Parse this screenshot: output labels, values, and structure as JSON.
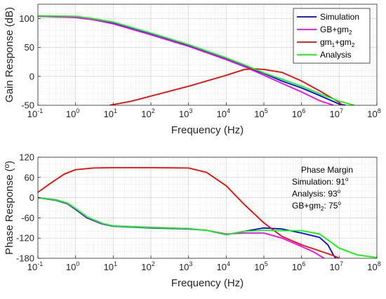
{
  "colors": {
    "simulation": "#0000ff",
    "gb_gm2": "#ff00ff",
    "gm1_gm2": "#ff0000",
    "analysis": "#00ff00"
  },
  "chart_data": [
    {
      "type": "line",
      "xscale": "log",
      "xlim": [
        0.1,
        100000000
      ],
      "ylim": [
        -50,
        125
      ],
      "xlabel": "Frequency (Hz)",
      "ylabel": "Gain Response (dB)",
      "xtick_labels": [
        {
          "base": "10",
          "exp": "-1"
        },
        {
          "base": "10",
          "exp": "0"
        },
        {
          "base": "10",
          "exp": "1"
        },
        {
          "base": "10",
          "exp": "2"
        },
        {
          "base": "10",
          "exp": "3"
        },
        {
          "base": "10",
          "exp": "4"
        },
        {
          "base": "10",
          "exp": "5"
        },
        {
          "base": "10",
          "exp": "6"
        },
        {
          "base": "10",
          "exp": "7"
        },
        {
          "base": "10",
          "exp": "8"
        }
      ],
      "ytick_labels": [
        "100",
        "50",
        "0",
        "-50"
      ],
      "grid": true,
      "legend_position": "top-right",
      "series": [
        {
          "key": "simulation",
          "name": "Simulation",
          "color": "#0000ff",
          "x": [
            0.1,
            1,
            3,
            10,
            100,
            1000,
            10000,
            30000,
            100000,
            300000,
            1000000,
            3000000,
            10000000,
            15000000
          ],
          "y": [
            104,
            103,
            99,
            92,
            73,
            53,
            30,
            18,
            5,
            -8,
            -20,
            -33,
            -48,
            -50
          ]
        },
        {
          "key": "gb_gm2",
          "name": "GB+gm",
          "sub": "2",
          "color": "#ff00ff",
          "x": [
            0.1,
            1,
            3,
            10,
            100,
            1000,
            10000,
            30000,
            100000,
            300000,
            1000000,
            3000000,
            7000000
          ],
          "y": [
            104,
            102,
            98,
            91,
            72,
            52,
            29,
            17,
            2,
            -12,
            -27,
            -42,
            -50
          ]
        },
        {
          "key": "gm1_gm2",
          "name": "gm",
          "sub": "1",
          "name2": "+gm",
          "sub2": "2",
          "color": "#ff0000",
          "x": [
            8,
            30,
            100,
            1000,
            10000,
            30000,
            60000,
            100000,
            300000,
            1000000,
            3000000,
            10000000,
            12000000
          ],
          "y": [
            -50,
            -43,
            -34,
            -17,
            2,
            12,
            13,
            12,
            7,
            -8,
            -25,
            -45,
            -50
          ]
        },
        {
          "key": "analysis",
          "name": "Analysis",
          "color": "#00ff00",
          "x": [
            0.1,
            1,
            3,
            10,
            100,
            1000,
            10000,
            30000,
            100000,
            300000,
            1000000,
            3000000,
            10000000,
            25000000
          ],
          "y": [
            105,
            104,
            100,
            94,
            75,
            55,
            32,
            20,
            6,
            -5,
            -17,
            -30,
            -43,
            -50
          ]
        }
      ]
    },
    {
      "type": "line",
      "xscale": "log",
      "xlim": [
        0.1,
        100000000
      ],
      "ylim": [
        -180,
        120
      ],
      "xlabel": "Frequency (Hz)",
      "ylabel": "Phase Response (º)",
      "xtick_labels": [
        {
          "base": "10",
          "exp": "-1"
        },
        {
          "base": "10",
          "exp": "0"
        },
        {
          "base": "10",
          "exp": "1"
        },
        {
          "base": "10",
          "exp": "2"
        },
        {
          "base": "10",
          "exp": "3"
        },
        {
          "base": "10",
          "exp": "4"
        },
        {
          "base": "10",
          "exp": "5"
        },
        {
          "base": "10",
          "exp": "6"
        },
        {
          "base": "10",
          "exp": "7"
        },
        {
          "base": "10",
          "exp": "8"
        }
      ],
      "ytick_labels": [
        "120",
        "60",
        "0",
        "-60",
        "-120",
        "-180"
      ],
      "grid": true,
      "annotation": {
        "title": "Phase Margin",
        "lines": [
          {
            "text": "Simulation: 91",
            "sup": "o"
          },
          {
            "text": "Analysis: 93",
            "sup": "o"
          },
          {
            "text": "GB+gm",
            "sub": "2",
            "text2": ": 75",
            "sup": "o"
          }
        ]
      },
      "series": [
        {
          "key": "simulation",
          "color": "#0000ff",
          "x": [
            0.1,
            0.3,
            0.6,
            1,
            2,
            5,
            10,
            100,
            1000,
            3000,
            10000,
            30000,
            100000,
            300000,
            1000000,
            3000000,
            5000000,
            7000000,
            8000000
          ],
          "y": [
            0,
            -8,
            -18,
            -35,
            -60,
            -78,
            -85,
            -90,
            -93,
            -97,
            -110,
            -100,
            -90,
            -93,
            -105,
            -118,
            -140,
            -170,
            -180
          ]
        },
        {
          "key": "gb_gm2",
          "color": "#ff00ff",
          "x": [
            0.1,
            0.3,
            0.6,
            1,
            2,
            5,
            10,
            100,
            1000,
            3000,
            10000,
            30000,
            100000,
            300000,
            1000000,
            2000000,
            3000000,
            4000000
          ],
          "y": [
            0,
            -6,
            -17,
            -33,
            -58,
            -77,
            -84,
            -88,
            -92,
            -97,
            -108,
            -105,
            -105,
            -120,
            -145,
            -160,
            -172,
            -180
          ]
        },
        {
          "key": "gm1_gm2",
          "color": "#ff0000",
          "x": [
            0.1,
            0.2,
            0.5,
            1,
            3,
            10,
            100,
            1000,
            3000,
            10000,
            30000,
            100000,
            300000,
            1000000,
            3000000,
            7000000,
            10000000
          ],
          "y": [
            16,
            40,
            70,
            83,
            88,
            89,
            89,
            88,
            75,
            35,
            -20,
            -75,
            -115,
            -140,
            -158,
            -172,
            -180
          ]
        },
        {
          "key": "analysis",
          "color": "#00ff00",
          "x": [
            0.1,
            0.3,
            0.6,
            1,
            2,
            5,
            10,
            100,
            1000,
            3000,
            10000,
            30000,
            100000,
            300000,
            1000000,
            3000000,
            10000000,
            30000000,
            100000000
          ],
          "y": [
            0,
            -7,
            -16,
            -32,
            -57,
            -76,
            -84,
            -89,
            -92,
            -97,
            -110,
            -100,
            -97,
            -98,
            -98,
            -108,
            -150,
            -170,
            -178
          ]
        }
      ]
    }
  ]
}
